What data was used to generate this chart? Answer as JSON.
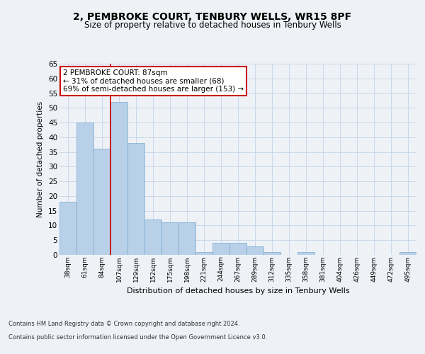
{
  "title1": "2, PEMBROKE COURT, TENBURY WELLS, WR15 8PF",
  "title2": "Size of property relative to detached houses in Tenbury Wells",
  "xlabel": "Distribution of detached houses by size in Tenbury Wells",
  "ylabel": "Number of detached properties",
  "categories": [
    "38sqm",
    "61sqm",
    "84sqm",
    "107sqm",
    "129sqm",
    "152sqm",
    "175sqm",
    "198sqm",
    "221sqm",
    "244sqm",
    "267sqm",
    "289sqm",
    "312sqm",
    "335sqm",
    "358sqm",
    "381sqm",
    "404sqm",
    "426sqm",
    "449sqm",
    "472sqm",
    "495sqm"
  ],
  "values": [
    18,
    45,
    36,
    52,
    38,
    12,
    11,
    11,
    1,
    4,
    4,
    3,
    1,
    0,
    1,
    0,
    0,
    0,
    0,
    0,
    1
  ],
  "bar_color": "#b8d0e8",
  "bar_edge_color": "#7aaacf",
  "grid_color": "#c8d8e8",
  "vline_color": "#cc0000",
  "vline_x": 2.5,
  "annotation_line1": "2 PEMBROKE COURT: 87sqm",
  "annotation_line2": "← 31% of detached houses are smaller (68)",
  "annotation_line3": "69% of semi-detached houses are larger (153) →",
  "annotation_box_facecolor": "#ffffff",
  "annotation_box_edgecolor": "#cc0000",
  "ylim": [
    0,
    65
  ],
  "yticks": [
    0,
    5,
    10,
    15,
    20,
    25,
    30,
    35,
    40,
    45,
    50,
    55,
    60,
    65
  ],
  "footer1": "Contains HM Land Registry data © Crown copyright and database right 2024.",
  "footer2": "Contains public sector information licensed under the Open Government Licence v3.0.",
  "bg_color": "#eef2f7"
}
